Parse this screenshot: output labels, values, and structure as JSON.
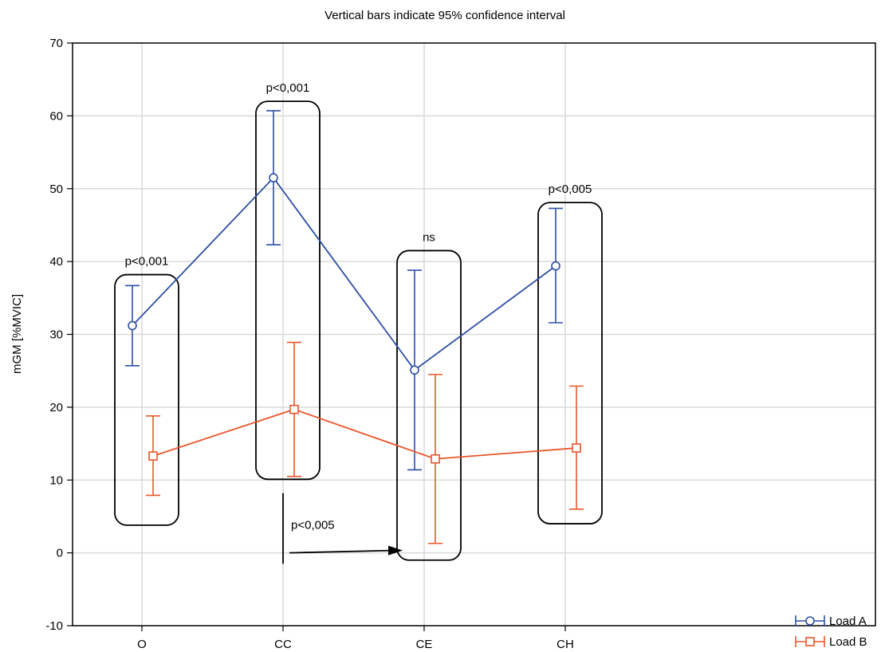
{
  "chart_data": {
    "type": "line",
    "title": "Vertical bars indicate 95% confidence interval",
    "xlabel": "",
    "ylabel": "mGM [%MVIC]",
    "categories": [
      "O",
      "CC",
      "CE",
      "CH"
    ],
    "ylim": [
      -10,
      70
    ],
    "yticks": [
      -10,
      0,
      10,
      20,
      30,
      40,
      50,
      60,
      70
    ],
    "grid": true,
    "legend_position": "bottom-right",
    "series": [
      {
        "name": "Load A",
        "color": "#2e4fa3",
        "marker": "circle",
        "values": [
          31.2,
          51.5,
          25.1,
          39.4
        ],
        "ci_low": [
          25.7,
          42.3,
          11.4,
          31.6
        ],
        "ci_high": [
          36.7,
          60.7,
          38.8,
          47.3
        ]
      },
      {
        "name": "Load B",
        "color": "#e8562a",
        "marker": "square",
        "values": [
          13.3,
          19.7,
          12.9,
          14.4
        ],
        "ci_low": [
          7.9,
          10.5,
          1.3,
          6.0
        ],
        "ci_high": [
          18.8,
          28.9,
          24.5,
          22.9
        ]
      }
    ],
    "annotations": [
      {
        "text": "p<0,001",
        "category": "O"
      },
      {
        "text": "p<0,001",
        "category": "CC"
      },
      {
        "text": "ns",
        "category": "CE"
      },
      {
        "text": "p<0,005",
        "category": "CH"
      },
      {
        "text": "p<0,005",
        "category": "CC-CE"
      }
    ],
    "group_boxes": [
      {
        "category": "O",
        "ymin": 3.8,
        "ymax": 38.2
      },
      {
        "category": "CC",
        "ymin": 10.1,
        "ymax": 62.0
      },
      {
        "category": "CE",
        "ymin": -1.0,
        "ymax": 41.5
      },
      {
        "category": "CH",
        "ymin": 4.0,
        "ymax": 48.1
      }
    ],
    "comparison_arrow": {
      "from_category": "CC",
      "to_category": "CE",
      "ymin": -1.5,
      "ymax": 8.2,
      "y": 0
    }
  }
}
